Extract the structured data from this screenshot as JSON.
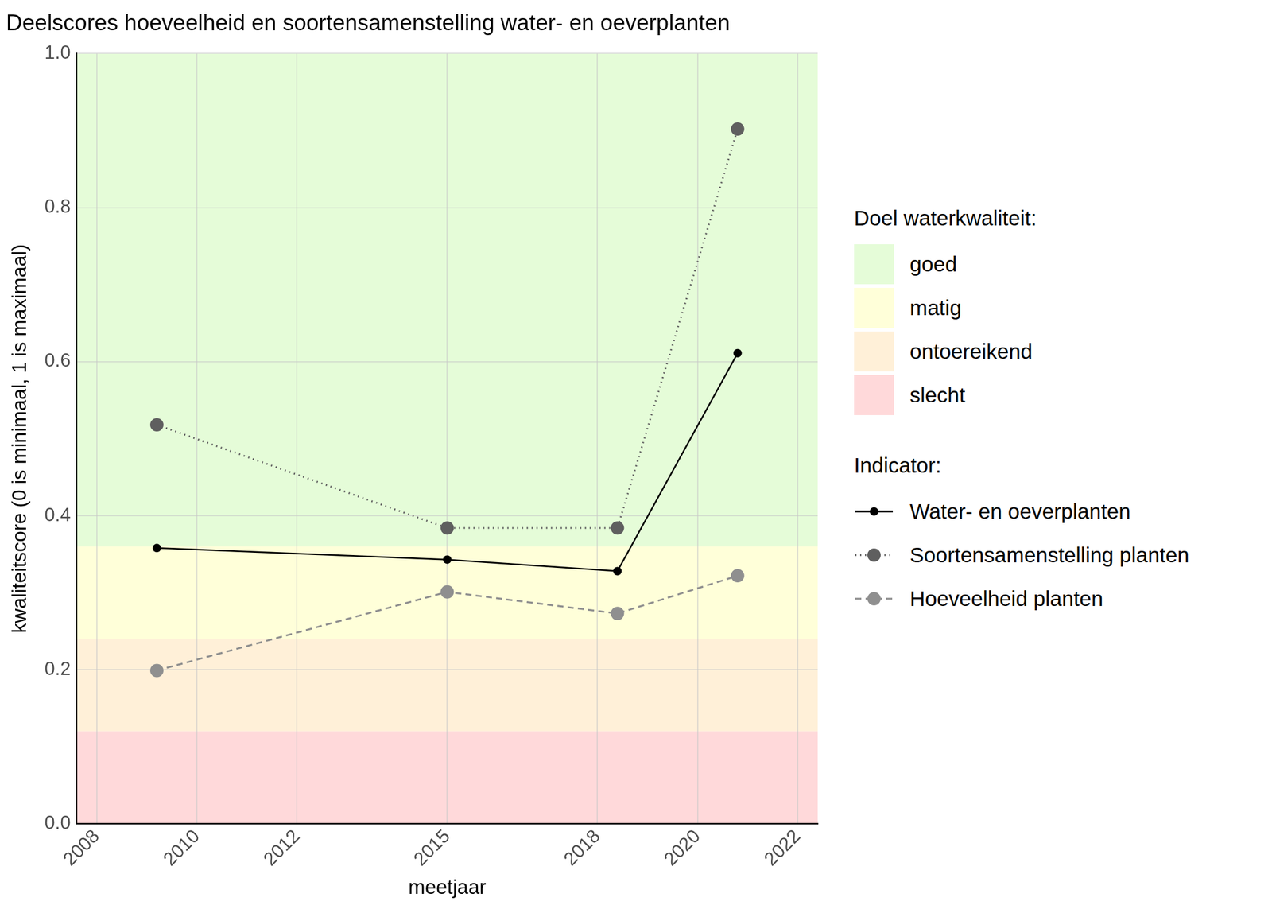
{
  "chart_data": {
    "type": "line",
    "title": "Deelscores hoeveelheid en soortensamenstelling water- en oeverplanten",
    "x_label": "meetjaar",
    "y_label": "kwaliteitscore (0 is minimaal, 1 is maximaal)",
    "x": [
      2009.2,
      2015,
      2018.4,
      2020.8
    ],
    "xlim": [
      2007.6,
      2022.4
    ],
    "xticks": [
      2008,
      2010,
      2012,
      2015,
      2018,
      2020,
      2022
    ],
    "ylim": [
      0,
      1
    ],
    "yticks": [
      {
        "value": 0,
        "label": "0.0"
      },
      0.2,
      0.4,
      0.6,
      0.8,
      {
        "value": 1,
        "label": "1.0"
      }
    ],
    "grid": true,
    "legend": "right",
    "bands_title": "Doel waterkwaliteit:",
    "bands": [
      {
        "name": "goed",
        "color": "#e5fcd8",
        "from": 0.36,
        "to": 1
      },
      {
        "name": "matig",
        "color": "#ffffd9",
        "from": 0.24,
        "to": 0.36
      },
      {
        "name": "ontoereikend",
        "color": "#fff0d8",
        "from": 0.12,
        "to": 0.24
      },
      {
        "name": "slecht",
        "color": "#ffd9da",
        "from": 0,
        "to": 0.12
      }
    ],
    "legend_title": "Indicator:",
    "series": [
      {
        "name": "Water- en oeverplanten",
        "color": "#000000",
        "marker": "circle",
        "line_style": "solid",
        "values": [
          0.358,
          0.343,
          0.328,
          0.611
        ]
      },
      {
        "name": "Soortensamenstelling planten",
        "color": "#5f5f5f",
        "marker": "circle",
        "line_style": "dotted",
        "values": [
          0.518,
          0.384,
          0.384,
          0.902
        ]
      },
      {
        "name": "Hoeveelheid planten",
        "color": "#8f8f8f",
        "marker": "circle",
        "line_style": "dashed",
        "values": [
          0.199,
          0.301,
          0.273,
          0.322
        ]
      }
    ]
  }
}
